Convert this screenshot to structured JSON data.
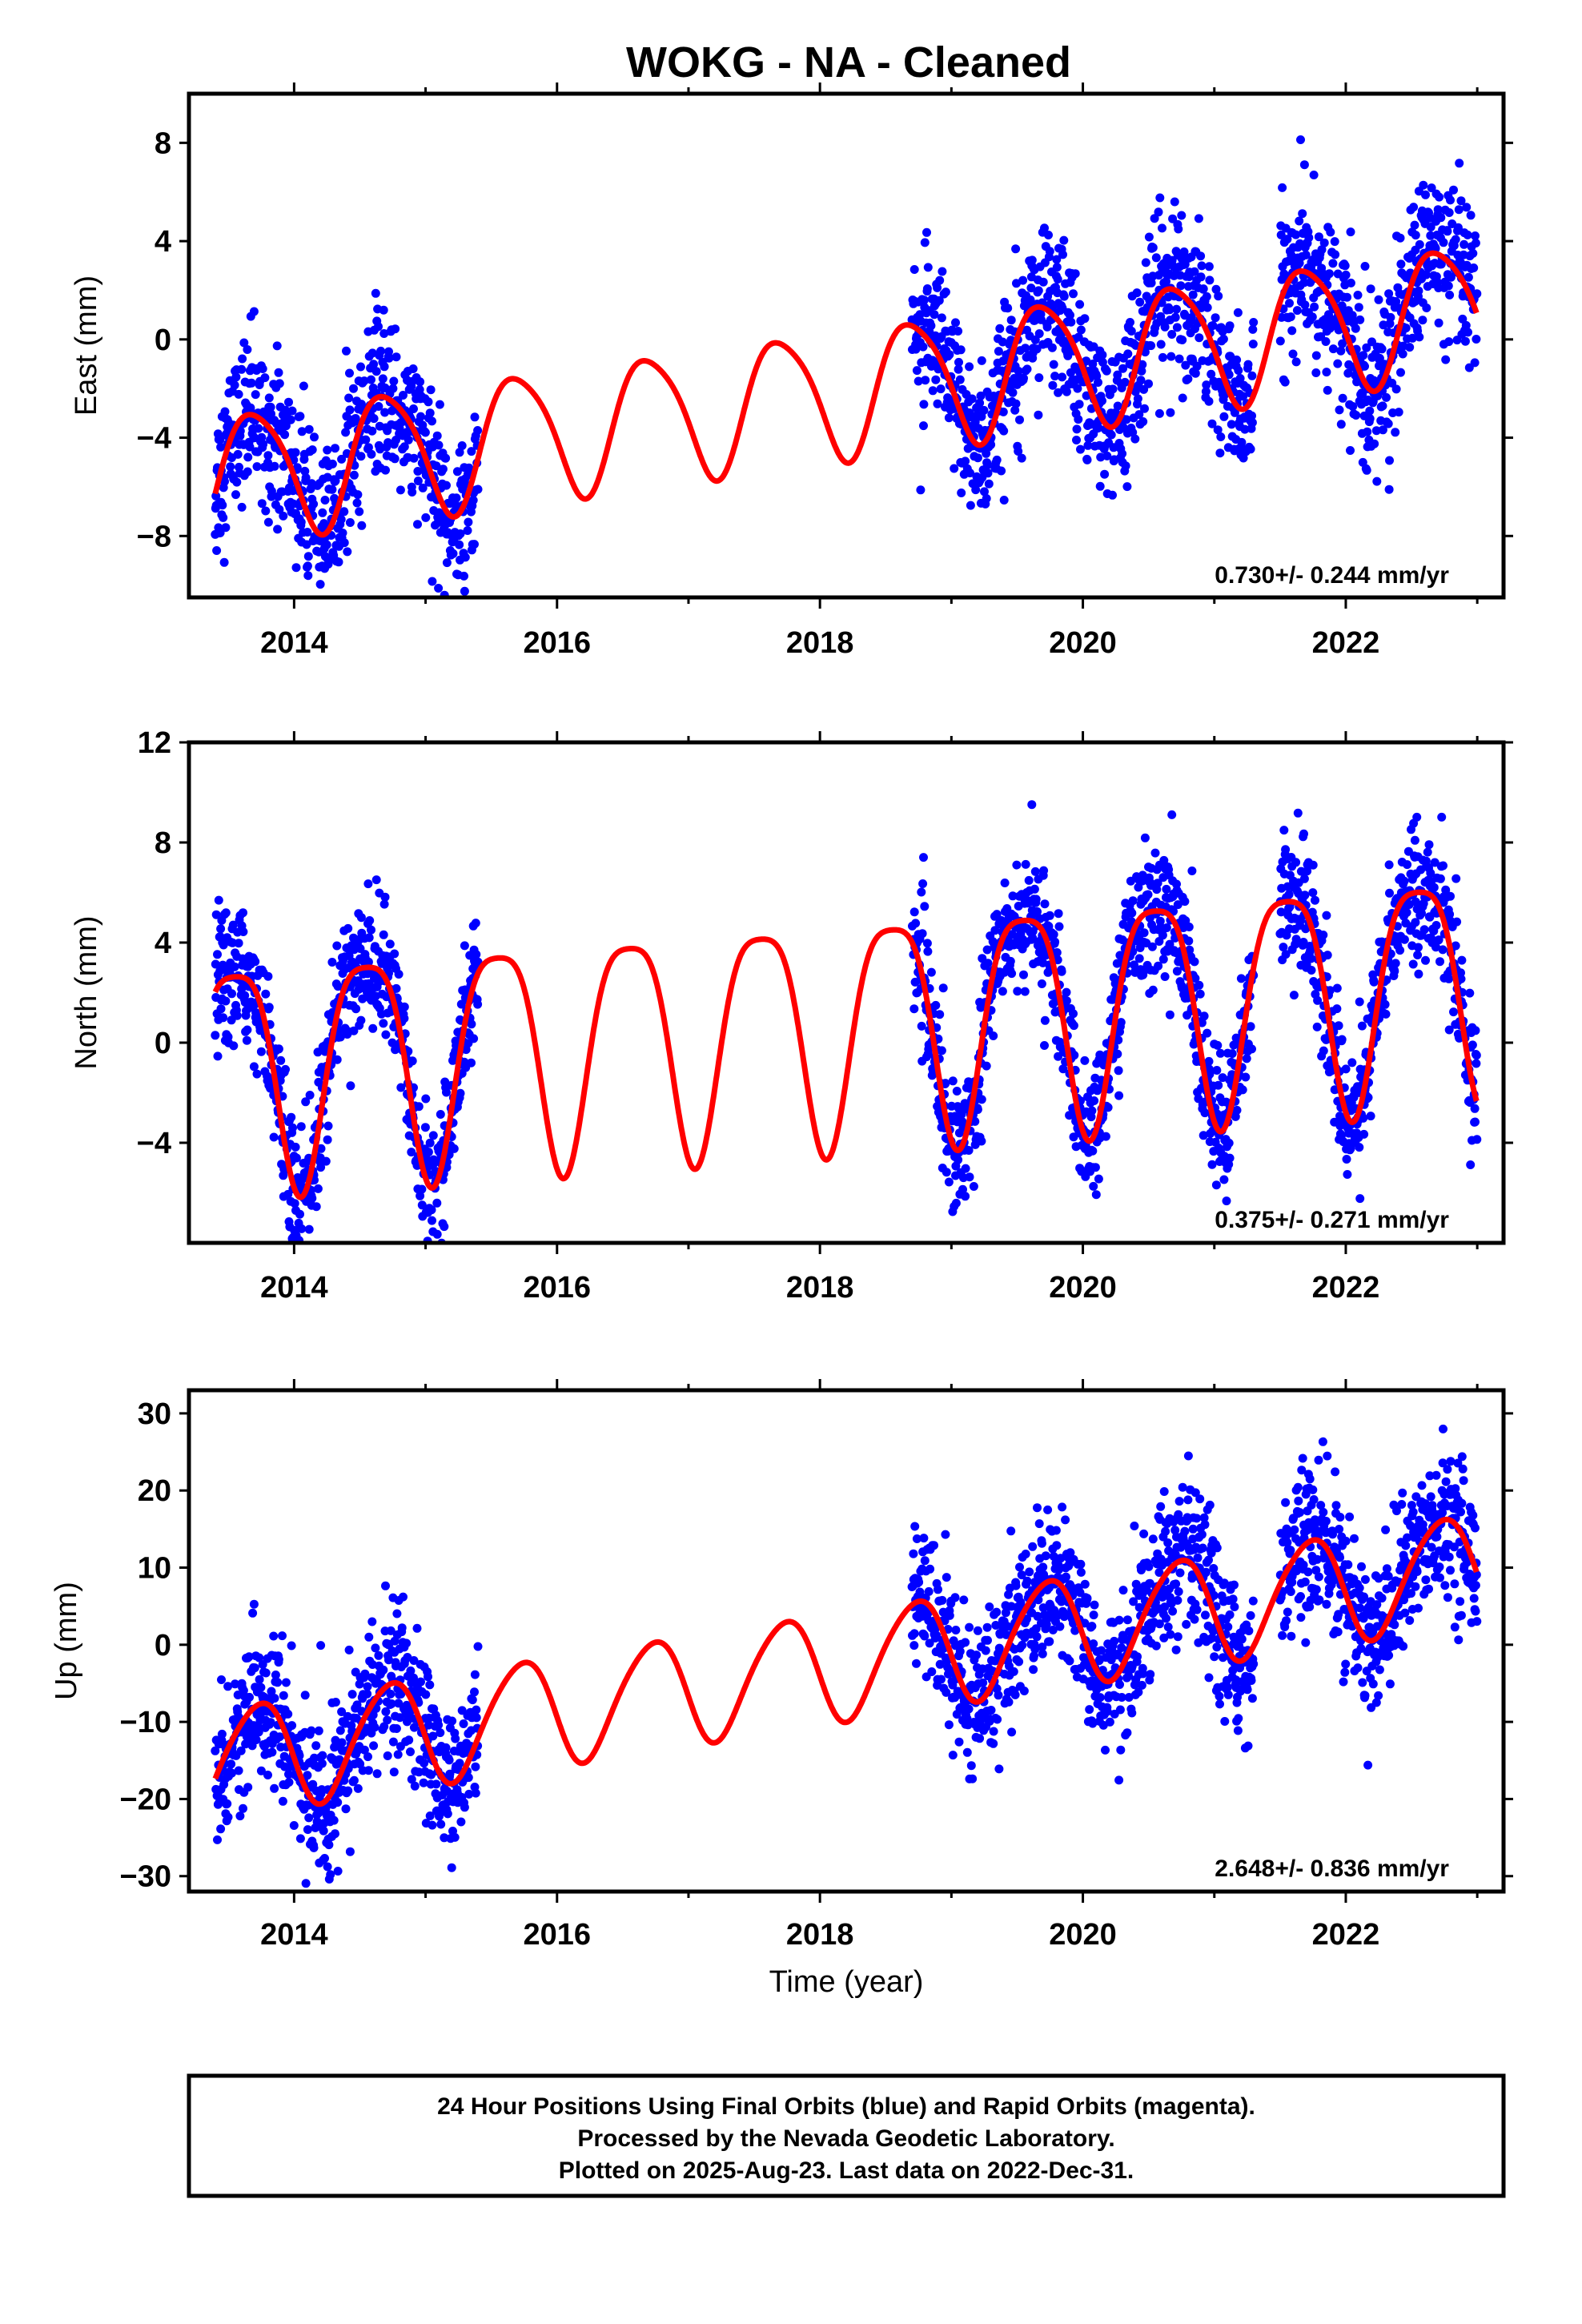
{
  "title": "WOKG  - NA - Cleaned",
  "colors": {
    "points": "#0000ff",
    "fit": "#ff0000",
    "frame": "#000000"
  },
  "chart_data": [
    {
      "type": "scatter",
      "ylabel": "East (mm)",
      "xlabel": "",
      "xlim": [
        2013.2,
        2023.2
      ],
      "ylim": [
        -10.5,
        10
      ],
      "yticks": [
        8,
        4,
        0,
        -4,
        -8
      ],
      "ytick_labels": [
        "8",
        "4",
        "0",
        "−4",
        "−8"
      ],
      "xticks": [
        2014,
        2016,
        2018,
        2020,
        2022
      ],
      "xtick_labels": [
        "2014",
        "2016",
        "2018",
        "2020",
        "2022"
      ],
      "rate": "0.730+/- 0.244 mm/yr",
      "fit": {
        "offset": -2.24,
        "trend": 0.73,
        "amplitude": 2.6,
        "phase_peak": 0.7,
        "semi_amplitude": 0.4,
        "semi_phase": 0.5,
        "ref_year": 2018.0
      },
      "data_segments": [
        [
          2013.4,
          2015.4
        ],
        [
          2018.7,
          2021.3
        ],
        [
          2021.5,
          2023.0
        ]
      ],
      "scatter_sigma": 1.6,
      "series": [
        {
          "values_note": ""
        }
      ]
    },
    {
      "type": "scatter",
      "ylabel": "North (mm)",
      "xlabel": "",
      "xlim": [
        2013.2,
        2023.2
      ],
      "ylim": [
        -8,
        12
      ],
      "yticks": [
        12,
        8,
        4,
        0,
        -4
      ],
      "ytick_labels": [
        "12",
        "8",
        "4",
        "0",
        "−4"
      ],
      "xticks": [
        2014,
        2016,
        2018,
        2020,
        2022
      ],
      "xtick_labels": [
        "2014",
        "2016",
        "2018",
        "2020",
        "2022"
      ],
      "rate": "0.375+/- 0.271 mm/yr",
      "fit": {
        "offset": 0.8,
        "trend": 0.375,
        "amplitude": 4.5,
        "phase_peak": 0.55,
        "semi_amplitude": 1.0,
        "semi_phase": 0.3,
        "ref_year": 2018.0
      },
      "data_segments": [
        [
          2013.4,
          2015.4
        ],
        [
          2018.7,
          2021.3
        ],
        [
          2021.5,
          2023.0
        ]
      ],
      "scatter_sigma": 1.3,
      "series": [
        {
          "values_note": ""
        }
      ]
    },
    {
      "type": "scatter",
      "ylabel": "Up (mm)",
      "xlabel": "Time (year)",
      "xlim": [
        2013.2,
        2023.2
      ],
      "ylim": [
        -32,
        33
      ],
      "yticks": [
        30,
        20,
        10,
        0,
        -10,
        -20,
        -30
      ],
      "ytick_labels": [
        "30",
        "20",
        "10",
        "0",
        "−10",
        "−20",
        "−30"
      ],
      "xticks": [
        2014,
        2016,
        2018,
        2020,
        2022
      ],
      "xtick_labels": [
        "2014",
        "2016",
        "2018",
        "2020",
        "2022"
      ],
      "rate": "2.648+/- 0.836 mm/yr",
      "fit": {
        "offset": -3.0,
        "trend": 2.648,
        "amplitude": 7.0,
        "phase_peak": 0.72,
        "semi_amplitude": 0.8,
        "semi_phase": 0.4,
        "ref_year": 2018.0
      },
      "data_segments": [
        [
          2013.4,
          2015.4
        ],
        [
          2018.7,
          2021.3
        ],
        [
          2021.5,
          2023.0
        ]
      ],
      "scatter_sigma": 4.8,
      "series": [
        {
          "values_note": ""
        }
      ]
    }
  ],
  "footer": {
    "line1": "24 Hour Positions Using Final Orbits (blue) and Rapid Orbits (magenta).",
    "line2": "Processed by the Nevada Geodetic Laboratory.",
    "line3": "Plotted on 2025-Aug-23. Last data on 2022-Dec-31."
  }
}
